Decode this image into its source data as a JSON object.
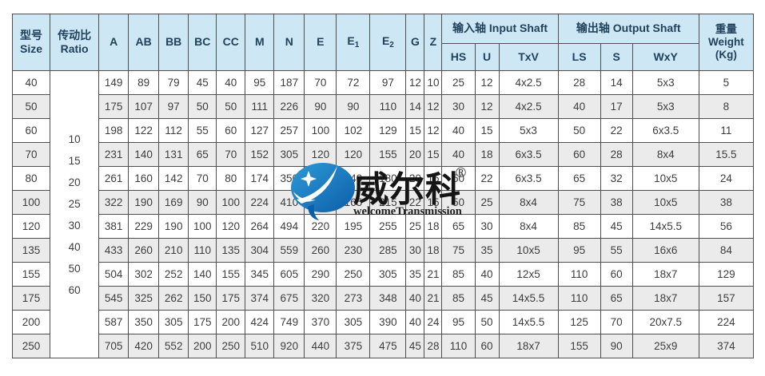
{
  "header": {
    "size": {
      "zh": "型号",
      "en": "Size"
    },
    "ratio": {
      "zh": "传动比",
      "en": "Ratio"
    },
    "dims": [
      {
        "t": "A"
      },
      {
        "t": "AB"
      },
      {
        "t": "BB"
      },
      {
        "t": "BC"
      },
      {
        "t": "CC"
      },
      {
        "t": "M"
      },
      {
        "t": "N"
      },
      {
        "t": "E"
      },
      {
        "t": "E",
        "s": "1"
      },
      {
        "t": "E",
        "s": "2"
      },
      {
        "t": "G"
      },
      {
        "t": "Z"
      }
    ],
    "input_shaft": {
      "label": "输入轴 Input Shaft",
      "cols": [
        "HS",
        "U",
        "TxV"
      ]
    },
    "output_shaft": {
      "label": "输出轴 Output Shaft",
      "cols": [
        "LS",
        "S",
        "WxY"
      ]
    },
    "weight": {
      "zh": "重量",
      "en": "Weight",
      "unit": "(Kg)"
    }
  },
  "ratio_values": [
    "10",
    "15",
    "20",
    "25",
    "30",
    "40",
    "50",
    "60"
  ],
  "rows": [
    {
      "size": "40",
      "values": [
        "149",
        "89",
        "79",
        "45",
        "40",
        "95",
        "187",
        "70",
        "72",
        "97",
        "12",
        "10",
        "25",
        "12",
        "4x2.5",
        "28",
        "14",
        "5x3",
        "5"
      ]
    },
    {
      "size": "50",
      "values": [
        "175",
        "107",
        "97",
        "50",
        "50",
        "111",
        "226",
        "90",
        "90",
        "110",
        "14",
        "12",
        "30",
        "12",
        "4x2.5",
        "40",
        "17",
        "5x3",
        "8"
      ]
    },
    {
      "size": "60",
      "values": [
        "198",
        "122",
        "112",
        "55",
        "60",
        "127",
        "257",
        "100",
        "102",
        "129",
        "15",
        "12",
        "40",
        "15",
        "5x3",
        "50",
        "22",
        "6x3.5",
        "11"
      ]
    },
    {
      "size": "70",
      "values": [
        "231",
        "140",
        "131",
        "65",
        "70",
        "152",
        "305",
        "120",
        "120",
        "155",
        "20",
        "15",
        "40",
        "18",
        "6x3.5",
        "60",
        "28",
        "8x4",
        "15.5"
      ]
    },
    {
      "size": "80",
      "values": [
        "261",
        "160",
        "142",
        "70",
        "80",
        "174",
        "350",
        "155",
        "140",
        "180",
        "20",
        "15",
        "50",
        "22",
        "6x3.5",
        "65",
        "32",
        "10x5",
        "24"
      ]
    },
    {
      "size": "100",
      "values": [
        "322",
        "190",
        "169",
        "90",
        "100",
        "224",
        "410",
        "190",
        "165",
        "215",
        "22",
        "15",
        "50",
        "25",
        "8x4",
        "75",
        "38",
        "10x5",
        "38"
      ]
    },
    {
      "size": "120",
      "values": [
        "381",
        "229",
        "190",
        "100",
        "120",
        "264",
        "494",
        "220",
        "195",
        "255",
        "25",
        "18",
        "65",
        "30",
        "8x4",
        "85",
        "45",
        "14x5.5",
        "56"
      ]
    },
    {
      "size": "135",
      "values": [
        "433",
        "260",
        "210",
        "110",
        "135",
        "304",
        "559",
        "260",
        "230",
        "285",
        "30",
        "18",
        "75",
        "35",
        "10x5",
        "95",
        "55",
        "16x6",
        "84"
      ]
    },
    {
      "size": "155",
      "values": [
        "504",
        "302",
        "252",
        "140",
        "155",
        "345",
        "605",
        "290",
        "250",
        "305",
        "35",
        "21",
        "85",
        "40",
        "12x5",
        "110",
        "60",
        "18x7",
        "129"
      ]
    },
    {
      "size": "175",
      "values": [
        "545",
        "325",
        "262",
        "150",
        "175",
        "374",
        "675",
        "320",
        "273",
        "348",
        "40",
        "21",
        "85",
        "45",
        "14x5.5",
        "110",
        "65",
        "18x7",
        "157"
      ]
    },
    {
      "size": "200",
      "values": [
        "587",
        "350",
        "305",
        "175",
        "200",
        "424",
        "749",
        "370",
        "305",
        "390",
        "40",
        "24",
        "95",
        "50",
        "14x5.5",
        "125",
        "70",
        "20x7.5",
        "224"
      ]
    },
    {
      "size": "250",
      "values": [
        "705",
        "420",
        "552",
        "200",
        "250",
        "510",
        "920",
        "440",
        "375",
        "475",
        "45",
        "28",
        "110",
        "60",
        "18x7",
        "155",
        "90",
        "25x9",
        "374"
      ]
    }
  ],
  "watermark": {
    "cn": "威尔科",
    "reg": "®",
    "en": "welcomeTransmission"
  },
  "colors": {
    "header_bg": "#cde7f5",
    "header_text": "#21425c",
    "stripe": "#ebebeb",
    "border": "#4f4f4f",
    "data_text": "#3d3d3d",
    "logo_blue_light": "#2e9ad8",
    "logo_blue_dark": "#0d5ea8",
    "logo_text": "#151515"
  }
}
